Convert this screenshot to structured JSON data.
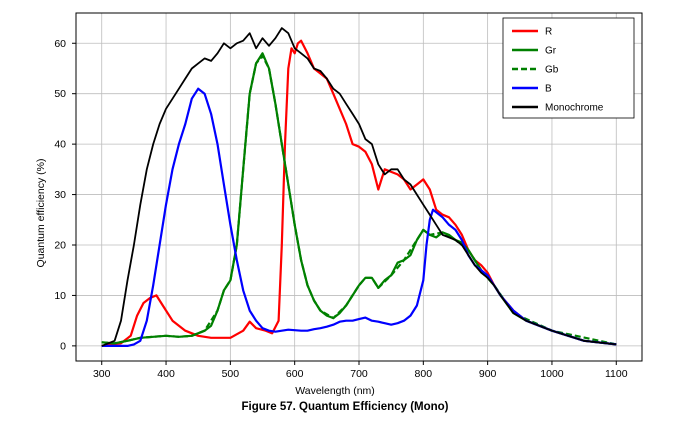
{
  "chart_data": {
    "type": "line",
    "title": "",
    "xlabel": "Wavelength (nm)",
    "ylabel": "Quantum efficiency (%)",
    "xlim": [
      260,
      1140
    ],
    "ylim": [
      -3,
      66
    ],
    "xticks": [
      300,
      400,
      500,
      600,
      700,
      800,
      900,
      1000,
      1100
    ],
    "yticks": [
      0,
      10,
      20,
      30,
      40,
      50,
      60
    ],
    "grid": true,
    "legend_position": "top-right",
    "series": [
      {
        "name": "R",
        "color": "#ff0000",
        "dash": false,
        "width": 2.2,
        "points": [
          [
            300,
            0
          ],
          [
            330,
            0.5
          ],
          [
            345,
            2
          ],
          [
            355,
            6
          ],
          [
            365,
            8.5
          ],
          [
            375,
            9.5
          ],
          [
            385,
            10
          ],
          [
            395,
            8
          ],
          [
            410,
            5
          ],
          [
            430,
            3
          ],
          [
            450,
            2
          ],
          [
            470,
            1.6
          ],
          [
            500,
            1.6
          ],
          [
            520,
            3
          ],
          [
            530,
            4.8
          ],
          [
            540,
            3.5
          ],
          [
            555,
            3
          ],
          [
            565,
            2.5
          ],
          [
            575,
            5
          ],
          [
            580,
            20
          ],
          [
            585,
            40
          ],
          [
            590,
            55
          ],
          [
            595,
            59
          ],
          [
            600,
            58
          ],
          [
            605,
            60
          ],
          [
            610,
            60.5
          ],
          [
            620,
            58
          ],
          [
            630,
            55
          ],
          [
            640,
            54
          ],
          [
            650,
            53
          ],
          [
            660,
            50
          ],
          [
            670,
            47
          ],
          [
            680,
            44
          ],
          [
            690,
            40
          ],
          [
            700,
            39.5
          ],
          [
            710,
            38.5
          ],
          [
            720,
            36
          ],
          [
            730,
            31
          ],
          [
            740,
            35
          ],
          [
            750,
            34.5
          ],
          [
            760,
            34
          ],
          [
            770,
            33
          ],
          [
            780,
            31
          ],
          [
            790,
            32
          ],
          [
            800,
            33
          ],
          [
            810,
            31
          ],
          [
            820,
            27
          ],
          [
            830,
            26
          ],
          [
            840,
            25.5
          ],
          [
            850,
            24
          ],
          [
            860,
            22
          ],
          [
            870,
            19
          ],
          [
            880,
            17
          ],
          [
            890,
            16
          ],
          [
            900,
            14.5
          ],
          [
            910,
            12
          ],
          [
            920,
            10
          ],
          [
            940,
            7
          ],
          [
            960,
            5
          ],
          [
            1000,
            3
          ],
          [
            1050,
            1
          ],
          [
            1100,
            0.3
          ]
        ]
      },
      {
        "name": "Gr",
        "color": "#008000",
        "dash": false,
        "width": 2.2,
        "points": [
          [
            300,
            0.7
          ],
          [
            310,
            0.6
          ],
          [
            320,
            0.5
          ],
          [
            340,
            1
          ],
          [
            360,
            1.6
          ],
          [
            380,
            1.8
          ],
          [
            400,
            2
          ],
          [
            420,
            1.8
          ],
          [
            440,
            2
          ],
          [
            460,
            3
          ],
          [
            470,
            4
          ],
          [
            480,
            7
          ],
          [
            490,
            11
          ],
          [
            500,
            13
          ],
          [
            510,
            20
          ],
          [
            520,
            35
          ],
          [
            530,
            50
          ],
          [
            540,
            56
          ],
          [
            550,
            58
          ],
          [
            560,
            55
          ],
          [
            570,
            48
          ],
          [
            580,
            40
          ],
          [
            590,
            32
          ],
          [
            600,
            24
          ],
          [
            610,
            17
          ],
          [
            620,
            12
          ],
          [
            630,
            9
          ],
          [
            640,
            7
          ],
          [
            650,
            6
          ],
          [
            660,
            5.5
          ],
          [
            670,
            6.5
          ],
          [
            680,
            8
          ],
          [
            690,
            10
          ],
          [
            700,
            12
          ],
          [
            710,
            13.5
          ],
          [
            720,
            13.5
          ],
          [
            730,
            11.5
          ],
          [
            740,
            13
          ],
          [
            750,
            14
          ],
          [
            760,
            16.5
          ],
          [
            770,
            17
          ],
          [
            780,
            18
          ],
          [
            790,
            21
          ],
          [
            800,
            23
          ],
          [
            810,
            22
          ],
          [
            820,
            21.5
          ],
          [
            830,
            22.5
          ],
          [
            840,
            22
          ],
          [
            850,
            21
          ],
          [
            860,
            20.5
          ],
          [
            870,
            19
          ],
          [
            880,
            17
          ],
          [
            890,
            15
          ],
          [
            900,
            13.5
          ],
          [
            910,
            12
          ],
          [
            920,
            10
          ],
          [
            940,
            6.5
          ],
          [
            960,
            5
          ],
          [
            1000,
            3
          ],
          [
            1050,
            1
          ],
          [
            1100,
            0.3
          ]
        ]
      },
      {
        "name": "Gb",
        "color": "#008000",
        "dash": true,
        "width": 2.2,
        "points": [
          [
            300,
            0.7
          ],
          [
            320,
            0.5
          ],
          [
            340,
            1
          ],
          [
            360,
            1.6
          ],
          [
            380,
            1.8
          ],
          [
            400,
            2
          ],
          [
            420,
            1.8
          ],
          [
            440,
            2
          ],
          [
            460,
            3
          ],
          [
            480,
            7
          ],
          [
            490,
            11
          ],
          [
            500,
            13
          ],
          [
            510,
            20
          ],
          [
            520,
            35
          ],
          [
            530,
            50
          ],
          [
            540,
            56
          ],
          [
            550,
            57.5
          ],
          [
            560,
            55
          ],
          [
            570,
            48
          ],
          [
            580,
            40
          ],
          [
            590,
            32
          ],
          [
            600,
            24
          ],
          [
            610,
            17
          ],
          [
            620,
            12
          ],
          [
            630,
            9
          ],
          [
            640,
            7
          ],
          [
            660,
            5.5
          ],
          [
            680,
            8
          ],
          [
            700,
            12
          ],
          [
            710,
            13.5
          ],
          [
            720,
            13.5
          ],
          [
            730,
            11.5
          ],
          [
            750,
            14
          ],
          [
            770,
            17
          ],
          [
            790,
            21
          ],
          [
            800,
            23
          ],
          [
            810,
            22
          ],
          [
            830,
            22.5
          ],
          [
            850,
            21
          ],
          [
            870,
            19
          ],
          [
            890,
            15
          ],
          [
            910,
            12
          ],
          [
            940,
            6.5
          ],
          [
            1000,
            3
          ],
          [
            1100,
            0.3
          ]
        ]
      },
      {
        "name": "B",
        "color": "#0000ff",
        "dash": false,
        "width": 2.2,
        "points": [
          [
            300,
            0
          ],
          [
            340,
            0
          ],
          [
            350,
            0.3
          ],
          [
            360,
            1
          ],
          [
            370,
            5
          ],
          [
            380,
            12
          ],
          [
            390,
            20
          ],
          [
            400,
            28
          ],
          [
            410,
            35
          ],
          [
            420,
            40
          ],
          [
            430,
            44
          ],
          [
            440,
            49
          ],
          [
            450,
            51
          ],
          [
            460,
            50
          ],
          [
            470,
            46
          ],
          [
            480,
            40
          ],
          [
            490,
            32
          ],
          [
            500,
            24
          ],
          [
            510,
            17
          ],
          [
            520,
            11
          ],
          [
            530,
            7
          ],
          [
            540,
            5
          ],
          [
            550,
            3.5
          ],
          [
            560,
            3
          ],
          [
            570,
            2.8
          ],
          [
            580,
            3
          ],
          [
            590,
            3.2
          ],
          [
            600,
            3.1
          ],
          [
            610,
            3
          ],
          [
            620,
            3
          ],
          [
            630,
            3.3
          ],
          [
            640,
            3.5
          ],
          [
            650,
            3.8
          ],
          [
            660,
            4.2
          ],
          [
            670,
            4.8
          ],
          [
            680,
            5
          ],
          [
            690,
            5
          ],
          [
            700,
            5.3
          ],
          [
            710,
            5.6
          ],
          [
            720,
            5
          ],
          [
            730,
            4.8
          ],
          [
            740,
            4.5
          ],
          [
            750,
            4.2
          ],
          [
            760,
            4.5
          ],
          [
            770,
            5
          ],
          [
            780,
            6
          ],
          [
            790,
            8
          ],
          [
            800,
            13
          ],
          [
            805,
            20
          ],
          [
            810,
            25
          ],
          [
            815,
            27
          ],
          [
            820,
            26.5
          ],
          [
            830,
            25.5
          ],
          [
            840,
            24
          ],
          [
            850,
            23
          ],
          [
            860,
            21
          ],
          [
            870,
            18
          ],
          [
            880,
            16
          ],
          [
            890,
            15
          ],
          [
            900,
            14
          ],
          [
            910,
            12
          ],
          [
            920,
            10
          ],
          [
            940,
            7
          ],
          [
            960,
            5
          ],
          [
            1000,
            3
          ],
          [
            1050,
            1
          ],
          [
            1100,
            0.3
          ]
        ]
      },
      {
        "name": "Monochrome",
        "color": "#000000",
        "dash": false,
        "width": 1.8,
        "points": [
          [
            300,
            0
          ],
          [
            320,
            1
          ],
          [
            330,
            5
          ],
          [
            340,
            13
          ],
          [
            350,
            20
          ],
          [
            360,
            28
          ],
          [
            370,
            35
          ],
          [
            380,
            40
          ],
          [
            390,
            44
          ],
          [
            400,
            47
          ],
          [
            410,
            49
          ],
          [
            420,
            51
          ],
          [
            430,
            53
          ],
          [
            440,
            55
          ],
          [
            450,
            56
          ],
          [
            460,
            57
          ],
          [
            470,
            56.5
          ],
          [
            480,
            58
          ],
          [
            490,
            60
          ],
          [
            500,
            59
          ],
          [
            510,
            60
          ],
          [
            520,
            60.5
          ],
          [
            530,
            62
          ],
          [
            540,
            59
          ],
          [
            550,
            61
          ],
          [
            560,
            59.5
          ],
          [
            570,
            61
          ],
          [
            580,
            63
          ],
          [
            590,
            62
          ],
          [
            600,
            59
          ],
          [
            610,
            58
          ],
          [
            620,
            57
          ],
          [
            630,
            55
          ],
          [
            640,
            54.5
          ],
          [
            650,
            53
          ],
          [
            660,
            51
          ],
          [
            670,
            50
          ],
          [
            680,
            48
          ],
          [
            690,
            46
          ],
          [
            700,
            44
          ],
          [
            710,
            41
          ],
          [
            720,
            40
          ],
          [
            730,
            36
          ],
          [
            740,
            34
          ],
          [
            750,
            35
          ],
          [
            760,
            35
          ],
          [
            770,
            33
          ],
          [
            780,
            32
          ],
          [
            790,
            30
          ],
          [
            800,
            28
          ],
          [
            810,
            26
          ],
          [
            820,
            24
          ],
          [
            830,
            22
          ],
          [
            840,
            21.5
          ],
          [
            850,
            21
          ],
          [
            860,
            20
          ],
          [
            870,
            18
          ],
          [
            880,
            16
          ],
          [
            890,
            14.5
          ],
          [
            900,
            13.5
          ],
          [
            910,
            12
          ],
          [
            920,
            10
          ],
          [
            940,
            6.5
          ],
          [
            960,
            5
          ],
          [
            1000,
            3
          ],
          [
            1050,
            1
          ],
          [
            1100,
            0.3
          ]
        ]
      }
    ]
  },
  "caption": "Figure 57. Quantum Efficiency (Mono)"
}
